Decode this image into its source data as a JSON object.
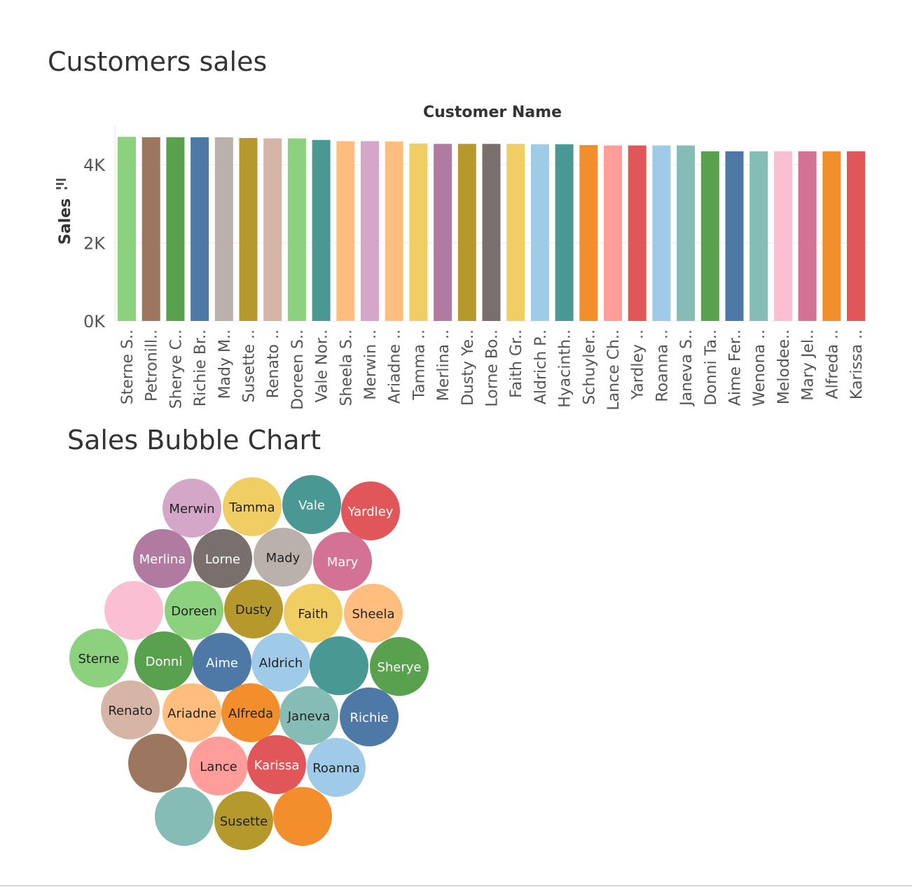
{
  "titles": {
    "bar": "Customers sales",
    "bubble": "Sales Bubble Chart"
  },
  "chart_data": [
    {
      "type": "bar",
      "title": "Customers sales",
      "xlabel": "Customer Name",
      "ylabel": "Sales",
      "ylim": [
        0,
        4800
      ],
      "yticks": [
        0,
        2000,
        4000
      ],
      "ytick_labels": [
        "0K",
        "2K",
        "4K"
      ],
      "grid": true,
      "sort_icon": "sort-descending-icon",
      "categories": [
        "Sterne S..",
        "Petronill..",
        "Sherye C..",
        "Richie Br..",
        "Mady M..",
        "Susette ..",
        "Renato ..",
        "Doreen S..",
        "Vale Nor..",
        "Sheela S..",
        "Merwin ..",
        "Ariadne ..",
        "Tamma ..",
        "Merlina ..",
        "Dusty Ye..",
        "Lorne Bo..",
        "Faith Gr..",
        "Aldrich P..",
        "Hyacinth..",
        "Schuyler..",
        "Lance Ch..",
        "Yardley ..",
        "Roanna ..",
        "Janeva S..",
        "Donni Ta..",
        "Aime Fer..",
        "Wenona ..",
        "Melodee..",
        "Mary Jel..",
        "Alfreda ..",
        "Karissa .."
      ],
      "values": [
        4710,
        4700,
        4700,
        4700,
        4700,
        4680,
        4670,
        4670,
        4630,
        4600,
        4600,
        4590,
        4540,
        4530,
        4530,
        4530,
        4530,
        4520,
        4520,
        4500,
        4490,
        4490,
        4490,
        4490,
        4340,
        4340,
        4340,
        4340,
        4340,
        4340,
        4340
      ],
      "colors": [
        "#8cd17d",
        "#9d7660",
        "#59a14f",
        "#4e79a7",
        "#bab0ac",
        "#b6992d",
        "#d7b5a6",
        "#8cd17d",
        "#499894",
        "#ffbe7d",
        "#d4a6c8",
        "#ffbe7d",
        "#f1ce63",
        "#b07aa1",
        "#b6992d",
        "#79706e",
        "#f1ce63",
        "#a0cbe8",
        "#499894",
        "#f28e2b",
        "#ff9d9a",
        "#e15759",
        "#a0cbe8",
        "#86bcb6",
        "#59a14f",
        "#4e79a7",
        "#86bcb6",
        "#fabfd2",
        "#d37295",
        "#f28e2b",
        "#e15759"
      ]
    },
    {
      "type": "bubble",
      "title": "Sales Bubble Chart",
      "bubbles": [
        {
          "label": "Merwin",
          "color": "#d4a6c8",
          "text_color": "#222222"
        },
        {
          "label": "Tamma",
          "color": "#f1ce63",
          "text_color": "#222222"
        },
        {
          "label": "Vale",
          "color": "#499894",
          "text_color": "#ffffff"
        },
        {
          "label": "Yardley",
          "color": "#e15759",
          "text_color": "#ffffff"
        },
        {
          "label": "Merlina",
          "color": "#b07aa1",
          "text_color": "#ffffff"
        },
        {
          "label": "Lorne",
          "color": "#79706e",
          "text_color": "#ffffff"
        },
        {
          "label": "Mady",
          "color": "#bab0ac",
          "text_color": "#222222"
        },
        {
          "label": "Mary",
          "color": "#d37295",
          "text_color": "#ffffff"
        },
        {
          "label": "",
          "color": "#fabfd2",
          "text_color": "#222222"
        },
        {
          "label": "Doreen",
          "color": "#8cd17d",
          "text_color": "#222222"
        },
        {
          "label": "Dusty",
          "color": "#b6992d",
          "text_color": "#222222"
        },
        {
          "label": "Faith",
          "color": "#f1ce63",
          "text_color": "#222222"
        },
        {
          "label": "Sheela",
          "color": "#ffbe7d",
          "text_color": "#222222"
        },
        {
          "label": "Sterne",
          "color": "#8cd17d",
          "text_color": "#222222"
        },
        {
          "label": "Donni",
          "color": "#59a14f",
          "text_color": "#ffffff"
        },
        {
          "label": "Aime",
          "color": "#4e79a7",
          "text_color": "#ffffff"
        },
        {
          "label": "Aldrich",
          "color": "#a0cbe8",
          "text_color": "#222222"
        },
        {
          "label": "",
          "color": "#499894",
          "text_color": "#ffffff"
        },
        {
          "label": "Sherye",
          "color": "#59a14f",
          "text_color": "#ffffff"
        },
        {
          "label": "Renato",
          "color": "#d7b5a6",
          "text_color": "#222222"
        },
        {
          "label": "Ariadne",
          "color": "#ffbe7d",
          "text_color": "#222222"
        },
        {
          "label": "Alfreda",
          "color": "#f28e2b",
          "text_color": "#222222"
        },
        {
          "label": "Janeva",
          "color": "#86bcb6",
          "text_color": "#222222"
        },
        {
          "label": "Richie",
          "color": "#4e79a7",
          "text_color": "#ffffff"
        },
        {
          "label": "",
          "color": "#9d7660",
          "text_color": "#ffffff"
        },
        {
          "label": "Lance",
          "color": "#ff9d9a",
          "text_color": "#222222"
        },
        {
          "label": "Karissa",
          "color": "#e15759",
          "text_color": "#ffffff"
        },
        {
          "label": "Roanna",
          "color": "#a0cbe8",
          "text_color": "#222222"
        },
        {
          "label": "",
          "color": "#86bcb6",
          "text_color": "#222222"
        },
        {
          "label": "Susette",
          "color": "#b6992d",
          "text_color": "#222222"
        },
        {
          "label": "",
          "color": "#f28e2b",
          "text_color": "#222222"
        }
      ]
    }
  ]
}
